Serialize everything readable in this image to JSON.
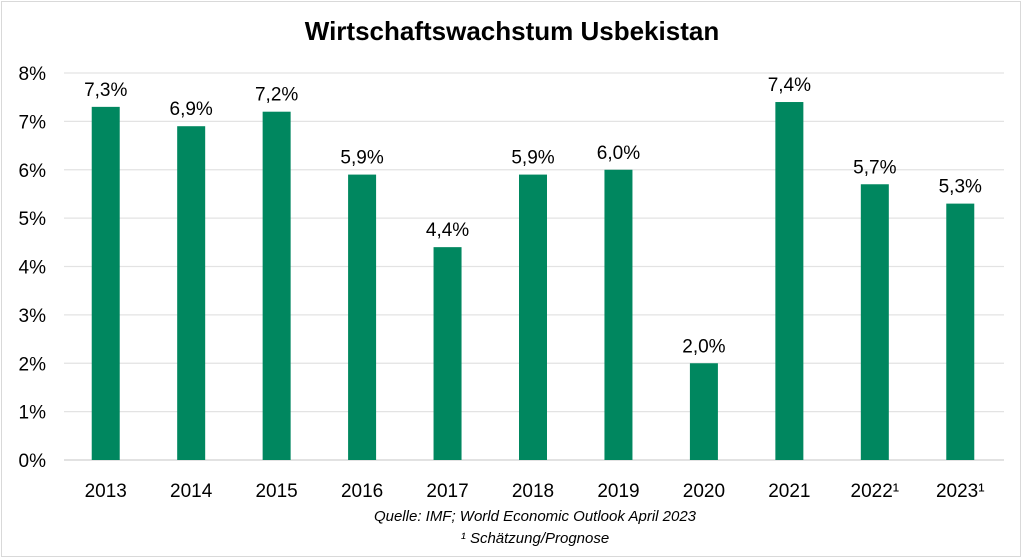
{
  "chart_data": {
    "type": "bar",
    "title": "Wirtschaftswachstum Usbekistan",
    "categories": [
      "2013",
      "2014",
      "2015",
      "2016",
      "2017",
      "2018",
      "2019",
      "2020",
      "2021",
      "2022¹",
      "2023¹"
    ],
    "values": [
      7.3,
      6.9,
      7.2,
      5.9,
      4.4,
      5.9,
      6.0,
      2.0,
      7.4,
      5.7,
      5.3
    ],
    "data_labels": [
      "7,3%",
      "6,9%",
      "7,2%",
      "5,9%",
      "4,4%",
      "5,9%",
      "6,0%",
      "2,0%",
      "7,4%",
      "5,7%",
      "5,3%"
    ],
    "y_ticks": [
      "0%",
      "1%",
      "2%",
      "3%",
      "4%",
      "5%",
      "6%",
      "7%",
      "8%"
    ],
    "ylim": [
      0,
      8
    ],
    "xlabel": "",
    "ylabel": "",
    "grid": true,
    "legend": "none",
    "bar_color": "#00875f",
    "source": "Quelle: IMF; World Economic Outlook April 2023",
    "footnote": "¹ Schätzung/Prognose"
  }
}
